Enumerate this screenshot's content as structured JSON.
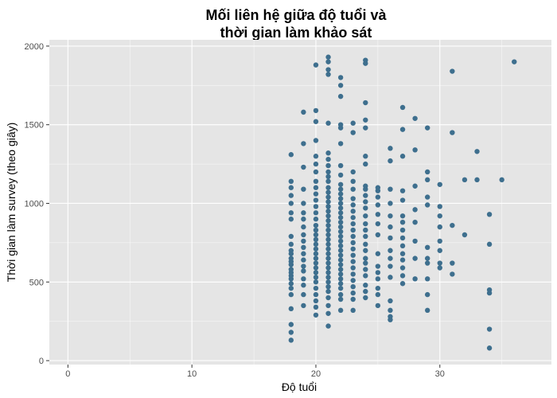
{
  "colors": {
    "panel_bg": "#E5E5E5",
    "grid_major": "#FFFFFF",
    "point": "#3E6F8E",
    "tick": "#333333"
  },
  "chart_data": {
    "type": "scatter",
    "title": "Mối liên hệ giữa độ tuổi và\nthời gian làm khảo sát",
    "xlabel": "Độ tuổi",
    "ylabel": "Thời gian làm survey (theo giây)",
    "xlim": [
      -1.5,
      39
    ],
    "ylim": [
      -25,
      2040
    ],
    "xticks": [
      0,
      10,
      20,
      30
    ],
    "yticks": [
      0,
      500,
      1000,
      1500,
      2000
    ],
    "grid": true,
    "legend": "none",
    "x": [
      18,
      18,
      18,
      18,
      18,
      18,
      18,
      18,
      18,
      18,
      18,
      18,
      18,
      18,
      18,
      18,
      18,
      18,
      18,
      18,
      18,
      18,
      18,
      18,
      18,
      19,
      19,
      19,
      19,
      19,
      19,
      19,
      19,
      19,
      19,
      19,
      19,
      19,
      19,
      19,
      19,
      19,
      19,
      19,
      20,
      20,
      20,
      20,
      20,
      20,
      20,
      20,
      20,
      20,
      20,
      20,
      20,
      20,
      20,
      20,
      20,
      20,
      20,
      20,
      20,
      20,
      20,
      20,
      20,
      20,
      20,
      20,
      20,
      20,
      20,
      20,
      21,
      21,
      21,
      21,
      21,
      21,
      21,
      21,
      21,
      21,
      21,
      21,
      21,
      21,
      21,
      21,
      21,
      21,
      21,
      21,
      21,
      21,
      21,
      21,
      21,
      21,
      21,
      21,
      21,
      21,
      21,
      21,
      21,
      21,
      21,
      21,
      21,
      21,
      22,
      22,
      22,
      22,
      22,
      22,
      22,
      22,
      22,
      22,
      22,
      22,
      22,
      22,
      22,
      22,
      22,
      22,
      22,
      22,
      22,
      22,
      22,
      22,
      22,
      22,
      22,
      22,
      22,
      22,
      22,
      22,
      22,
      22,
      23,
      23,
      23,
      23,
      23,
      23,
      23,
      23,
      23,
      23,
      23,
      23,
      23,
      23,
      23,
      23,
      23,
      23,
      23,
      23,
      23,
      23,
      23,
      24,
      24,
      24,
      24,
      24,
      24,
      24,
      24,
      24,
      24,
      24,
      24,
      24,
      24,
      24,
      24,
      24,
      24,
      24,
      24,
      24,
      24,
      24,
      24,
      24,
      25,
      25,
      25,
      25,
      25,
      25,
      25,
      25,
      25,
      25,
      25,
      25,
      25,
      25,
      26,
      26,
      26,
      26,
      26,
      26,
      26,
      26,
      26,
      26,
      26,
      26,
      26,
      26,
      26,
      27,
      27,
      27,
      27,
      27,
      27,
      27,
      27,
      27,
      27,
      27,
      27,
      27,
      27,
      27,
      28,
      28,
      28,
      28,
      28,
      28,
      28,
      28,
      29,
      29,
      29,
      29,
      29,
      29,
      29,
      29,
      29,
      29,
      29,
      30,
      30,
      30,
      30,
      30,
      30,
      30,
      30,
      31,
      31,
      31,
      31,
      31,
      32,
      32,
      33,
      33,
      34,
      34,
      34,
      34,
      34,
      34,
      35,
      36
    ],
    "y": [
      130,
      180,
      230,
      330,
      420,
      460,
      490,
      520,
      540,
      560,
      580,
      610,
      630,
      650,
      680,
      700,
      740,
      790,
      900,
      940,
      1000,
      1050,
      1100,
      1140,
      1310,
      350,
      420,
      480,
      520,
      570,
      600,
      640,
      680,
      720,
      760,
      800,
      850,
      900,
      940,
      1000,
      1090,
      1230,
      1380,
      1580,
      290,
      340,
      380,
      420,
      460,
      500,
      530,
      560,
      590,
      620,
      650,
      680,
      710,
      740,
      770,
      800,
      830,
      860,
      900,
      940,
      980,
      1020,
      1060,
      1100,
      1140,
      1200,
      1250,
      1300,
      1400,
      1520,
      1590,
      1880,
      220,
      300,
      350,
      400,
      440,
      470,
      500,
      530,
      560,
      590,
      620,
      650,
      680,
      710,
      740,
      770,
      800,
      830,
      860,
      890,
      920,
      950,
      980,
      1010,
      1040,
      1070,
      1100,
      1140,
      1170,
      1200,
      1240,
      1280,
      1320,
      1510,
      1820,
      1850,
      1900,
      1930,
      320,
      390,
      420,
      460,
      490,
      520,
      550,
      580,
      610,
      640,
      670,
      700,
      730,
      760,
      790,
      820,
      850,
      880,
      910,
      940,
      970,
      1000,
      1030,
      1060,
      1090,
      1120,
      1180,
      1240,
      1380,
      1480,
      1500,
      1680,
      1750,
      1800,
      320,
      390,
      430,
      470,
      510,
      550,
      590,
      630,
      670,
      710,
      750,
      790,
      830,
      870,
      910,
      950,
      990,
      1030,
      1090,
      1140,
      1200,
      1450,
      1510,
      400,
      440,
      480,
      540,
      580,
      620,
      650,
      700,
      740,
      790,
      830,
      870,
      920,
      970,
      1010,
      1050,
      1090,
      1110,
      1250,
      1300,
      1480,
      1530,
      1640,
      1890,
      1910,
      350,
      420,
      460,
      520,
      560,
      600,
      680,
      800,
      870,
      930,
      990,
      1040,
      1080,
      1100,
      260,
      280,
      320,
      380,
      530,
      600,
      650,
      700,
      780,
      850,
      920,
      1000,
      1090,
      1270,
      1350,
      490,
      540,
      590,
      640,
      680,
      730,
      780,
      830,
      880,
      920,
      1020,
      1080,
      1300,
      1470,
      1610,
      520,
      650,
      760,
      880,
      960,
      1110,
      1340,
      1540,
      320,
      420,
      520,
      620,
      650,
      720,
      990,
      1040,
      1150,
      1200,
      1480,
      590,
      620,
      700,
      760,
      850,
      920,
      980,
      1120,
      550,
      620,
      860,
      1450,
      1840,
      800,
      1150,
      1150,
      1330,
      80,
      200,
      430,
      450,
      740,
      930,
      1150,
      1900
    ]
  }
}
